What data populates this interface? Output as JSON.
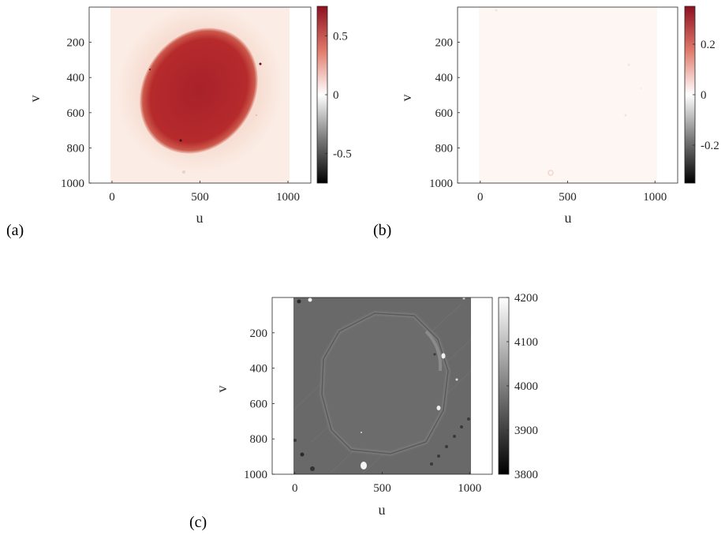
{
  "chart_data": [
    {
      "type": "heatmap",
      "panel_label": "(a)",
      "xlabel": "u",
      "ylabel": "v",
      "xlim": [
        -130,
        1130
      ],
      "ylim": [
        0,
        1000
      ],
      "y_reversed": true,
      "x_ticks": [
        0,
        500,
        1000
      ],
      "y_ticks": [
        200,
        400,
        600,
        800,
        1000
      ],
      "colorbar": {
        "range": [
          -0.75,
          0.75
        ],
        "ticks": [
          -0.5,
          0,
          0.5
        ],
        "tick_labels": [
          "-0.5",
          "0",
          "0.5"
        ],
        "colormap": "black-white-red"
      },
      "feature": {
        "shape": "ellipse",
        "center_u": 500,
        "center_v": 470,
        "level": 0.6,
        "background_level": 0.05
      },
      "image_extent": {
        "u": [
          0,
          1000
        ],
        "v": [
          0,
          1000
        ]
      },
      "grid": false
    },
    {
      "type": "heatmap",
      "panel_label": "(b)",
      "xlabel": "u",
      "ylabel": "v",
      "xlim": [
        -130,
        1130
      ],
      "ylim": [
        0,
        1000
      ],
      "y_reversed": true,
      "x_ticks": [
        0,
        500,
        1000
      ],
      "y_ticks": [
        200,
        400,
        600,
        800,
        1000
      ],
      "colorbar": {
        "range": [
          -0.35,
          0.35
        ],
        "ticks": [
          -0.2,
          0,
          0.2
        ],
        "tick_labels": [
          "-0.2",
          "0",
          "0.2"
        ],
        "colormap": "black-white-red"
      },
      "feature": {
        "shape": "uniform",
        "level": 0.01
      },
      "image_extent": {
        "u": [
          0,
          1000
        ],
        "v": [
          0,
          1000
        ]
      },
      "grid": false
    },
    {
      "type": "heatmap",
      "panel_label": "(c)",
      "xlabel": "u",
      "ylabel": "v",
      "xlim": [
        -130,
        1130
      ],
      "ylim": [
        0,
        1000
      ],
      "y_reversed": true,
      "x_ticks": [
        0,
        500,
        1000
      ],
      "y_ticks": [
        200,
        400,
        600,
        800,
        1000
      ],
      "colorbar": {
        "range": [
          3800,
          4200
        ],
        "ticks": [
          3800,
          3900,
          4000,
          4100,
          4200
        ],
        "tick_labels": [
          "3800",
          "3900",
          "4000",
          "4100",
          "4200"
        ],
        "colormap": "gray"
      },
      "feature": {
        "shape": "ring",
        "center_u": 500,
        "center_v": 470,
        "level": 3990
      },
      "image_extent": {
        "u": [
          0,
          1000
        ],
        "v": [
          0,
          1000
        ]
      },
      "grid": false
    }
  ],
  "colors": {
    "red_dark": "#9c1b22",
    "red_mid": "#c0322f",
    "red_light": "#fbebe4",
    "neutral": "#ffffff",
    "black": "#000000",
    "gray_bg": "#6a6a6a"
  }
}
